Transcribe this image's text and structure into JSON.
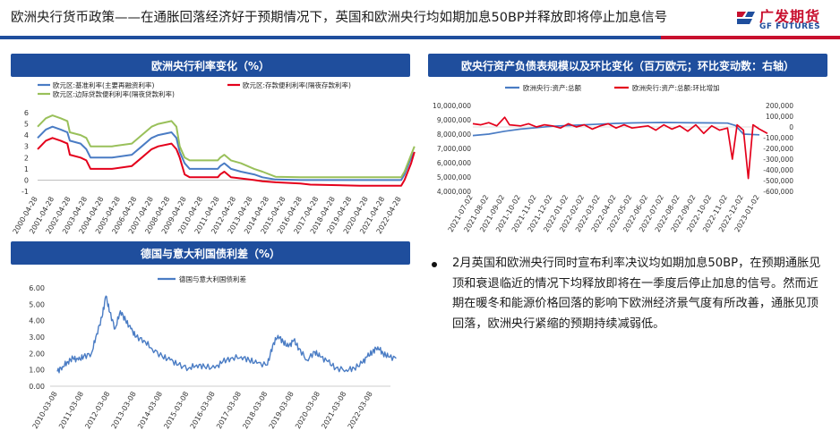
{
  "header": {
    "title": "欧洲央行货币政策——在通胀回落经济好于预期情况下，英国和欧洲央行均如期加息50BP并释放即将停止加息信号",
    "logo_cn": "广发期货",
    "logo_en": "GF FUTURES"
  },
  "colors": {
    "accent": "#1f4e9d",
    "brand_red": "#c8102e",
    "blue": "#4a7cc4",
    "red": "#e4001b",
    "green": "#99c05a"
  },
  "text": "2月英国和欧洲央行同时宣布利率决议均如期加息50BP，在预期通胀见顶和衰退临近的情况下均释放即将在一季度后停止加息的信号。然而近期在暖冬和能源价格回落的影响下欧洲经济景气度有所改善，通胀见顶回落，欧洲央行紧缩的预期持续减弱低。",
  "chart_data": [
    {
      "type": "line",
      "title": "欧洲央行利率变化（%）",
      "x_labels": [
        "2000-04-28",
        "2001-04-28",
        "2002-04-28",
        "2003-04-28",
        "2004-04-28",
        "2005-04-28",
        "2006-04-28",
        "2007-04-28",
        "2008-04-28",
        "2009-04-28",
        "2010-04-28",
        "2011-04-28",
        "2012-04-28",
        "2013-04-28",
        "2014-04-28",
        "2015-04-28",
        "2016-04-28",
        "2017-04-28",
        "2018-04-28",
        "2019-04-28",
        "2020-04-28",
        "2021-04-28",
        "2022-04-28"
      ],
      "ylim": [
        -1,
        6
      ],
      "yticks": [
        "6",
        "5",
        "4",
        "3",
        "2",
        "1",
        "0",
        "-1"
      ],
      "series": [
        {
          "name": "欧元区:基准利率(主要再融资利率)",
          "color": "#4a7cc4",
          "points": [
            [
              0,
              3.75
            ],
            [
              0.5,
              4.5
            ],
            [
              0.9,
              4.75
            ],
            [
              1.4,
              4.5
            ],
            [
              1.8,
              4.25
            ],
            [
              1.95,
              3.5
            ],
            [
              2.6,
              3.25
            ],
            [
              2.95,
              2.75
            ],
            [
              3.2,
              2.0
            ],
            [
              4.5,
              2.0
            ],
            [
              5.7,
              2.25
            ],
            [
              6.3,
              3.0
            ],
            [
              6.9,
              3.75
            ],
            [
              7.3,
              4.0
            ],
            [
              8.1,
              4.25
            ],
            [
              8.4,
              3.75
            ],
            [
              8.6,
              2.5
            ],
            [
              8.9,
              1.5
            ],
            [
              9.2,
              1.0
            ],
            [
              10.9,
              1.0
            ],
            [
              11.05,
              1.25
            ],
            [
              11.3,
              1.5
            ],
            [
              11.5,
              1.25
            ],
            [
              11.7,
              1.0
            ],
            [
              12.3,
              0.75
            ],
            [
              13.1,
              0.5
            ],
            [
              13.6,
              0.25
            ],
            [
              14.4,
              0.05
            ],
            [
              15.9,
              0.0
            ],
            [
              22.0,
              0.0
            ],
            [
              22.2,
              0.5
            ],
            [
              22.4,
              1.25
            ],
            [
              22.6,
              2.0
            ],
            [
              22.8,
              2.5
            ]
          ]
        },
        {
          "name": "欧元区:存款便利利率(隔夜存款利率)",
          "color": "#e4001b",
          "points": [
            [
              0,
              2.75
            ],
            [
              0.5,
              3.5
            ],
            [
              0.9,
              3.75
            ],
            [
              1.4,
              3.5
            ],
            [
              1.8,
              3.25
            ],
            [
              1.95,
              2.25
            ],
            [
              2.6,
              2.0
            ],
            [
              2.95,
              1.75
            ],
            [
              3.2,
              1.0
            ],
            [
              4.5,
              1.0
            ],
            [
              5.7,
              1.25
            ],
            [
              6.3,
              2.0
            ],
            [
              6.9,
              2.75
            ],
            [
              7.3,
              3.0
            ],
            [
              8.1,
              3.25
            ],
            [
              8.4,
              2.75
            ],
            [
              8.6,
              2.0
            ],
            [
              8.9,
              0.5
            ],
            [
              9.2,
              0.25
            ],
            [
              10.9,
              0.25
            ],
            [
              11.05,
              0.5
            ],
            [
              11.3,
              0.75
            ],
            [
              11.5,
              0.5
            ],
            [
              11.7,
              0.25
            ],
            [
              13.1,
              0.0
            ],
            [
              13.6,
              -0.1
            ],
            [
              14.4,
              -0.2
            ],
            [
              15.9,
              -0.3
            ],
            [
              16.5,
              -0.4
            ],
            [
              19.5,
              -0.5
            ],
            [
              21.5,
              -0.5
            ],
            [
              22.0,
              -0.5
            ],
            [
              22.2,
              0.0
            ],
            [
              22.4,
              0.75
            ],
            [
              22.6,
              1.5
            ],
            [
              22.8,
              2.5
            ]
          ]
        },
        {
          "name": "欧元区:边际贷款便利利率(隔夜贷款利率)",
          "color": "#99c05a",
          "points": [
            [
              0,
              4.75
            ],
            [
              0.5,
              5.5
            ],
            [
              0.9,
              5.75
            ],
            [
              1.4,
              5.5
            ],
            [
              1.8,
              5.25
            ],
            [
              1.95,
              4.25
            ],
            [
              2.6,
              4.0
            ],
            [
              2.95,
              3.75
            ],
            [
              3.2,
              3.0
            ],
            [
              4.5,
              3.0
            ],
            [
              5.7,
              3.25
            ],
            [
              6.3,
              4.0
            ],
            [
              6.9,
              4.75
            ],
            [
              7.3,
              5.0
            ],
            [
              8.1,
              5.25
            ],
            [
              8.4,
              4.75
            ],
            [
              8.6,
              3.0
            ],
            [
              8.9,
              2.0
            ],
            [
              9.2,
              1.75
            ],
            [
              10.9,
              1.75
            ],
            [
              11.05,
              2.0
            ],
            [
              11.3,
              2.25
            ],
            [
              11.5,
              2.0
            ],
            [
              11.7,
              1.75
            ],
            [
              12.3,
              1.5
            ],
            [
              13.1,
              1.0
            ],
            [
              13.6,
              0.75
            ],
            [
              14.4,
              0.3
            ],
            [
              15.9,
              0.25
            ],
            [
              22.0,
              0.25
            ],
            [
              22.2,
              0.75
            ],
            [
              22.4,
              1.5
            ],
            [
              22.6,
              2.25
            ],
            [
              22.8,
              3.0
            ]
          ]
        }
      ]
    },
    {
      "type": "line",
      "title": "欧央行资产负债表规模以及环比变化（百万欧元；环比变动数：右轴）",
      "x_labels": [
        "2021-07-02",
        "2021-08-02",
        "2021-09-02",
        "2021-10-02",
        "2021-11-02",
        "2021-12-02",
        "2022-01-02",
        "2022-02-02",
        "2022-03-02",
        "2022-04-02",
        "2022-05-02",
        "2022-06-02",
        "2022-07-02",
        "2022-08-02",
        "2022-09-02",
        "2022-10-02",
        "2022-11-02",
        "2022-12-02",
        "2023-01-02"
      ],
      "yticks_left": [
        "10,000,000",
        "9,000,000",
        "8,000,000",
        "7,000,000",
        "6,000,000",
        "5,000,000",
        "4,000,000"
      ],
      "yticks_right": [
        "200,000",
        "100,000",
        "0",
        "-100,000",
        "-200,000",
        "-300,000",
        "-400,000",
        "-500,000",
        "-600,000"
      ],
      "ylim_left": [
        4000000,
        10000000
      ],
      "ylim_right": [
        -600000,
        200000
      ],
      "series": [
        {
          "name": "欧洲央行:资产:总额",
          "axis": "left",
          "color": "#4a7cc4",
          "points": [
            [
              0,
              7900000
            ],
            [
              1,
              8000000
            ],
            [
              2,
              8200000
            ],
            [
              3,
              8350000
            ],
            [
              4,
              8450000
            ],
            [
              5,
              8550000
            ],
            [
              6,
              8600000
            ],
            [
              7,
              8650000
            ],
            [
              8,
              8700000
            ],
            [
              9,
              8750000
            ],
            [
              10,
              8780000
            ],
            [
              11,
              8800000
            ],
            [
              12,
              8810000
            ],
            [
              13,
              8800000
            ],
            [
              14,
              8790000
            ],
            [
              15,
              8780000
            ],
            [
              16,
              8770000
            ],
            [
              16.5,
              8600000
            ],
            [
              17,
              8000000
            ],
            [
              18,
              7950000
            ]
          ]
        },
        {
          "name": "欧洲央行:资产:总额:环比增加",
          "axis": "right",
          "color": "#e4001b",
          "points": [
            [
              0,
              30000
            ],
            [
              0.5,
              20000
            ],
            [
              1,
              40000
            ],
            [
              1.5,
              10000
            ],
            [
              2,
              90000
            ],
            [
              2.3,
              20000
            ],
            [
              3,
              10000
            ],
            [
              3.5,
              30000
            ],
            [
              4,
              0
            ],
            [
              4.5,
              20000
            ],
            [
              5,
              10000
            ],
            [
              5.5,
              -10000
            ],
            [
              6,
              30000
            ],
            [
              6.5,
              0
            ],
            [
              7,
              20000
            ],
            [
              7.5,
              -20000
            ],
            [
              8,
              10000
            ],
            [
              8.5,
              30000
            ],
            [
              9,
              -10000
            ],
            [
              9.5,
              20000
            ],
            [
              10,
              -10000
            ],
            [
              10.5,
              0
            ],
            [
              11,
              10000
            ],
            [
              11.5,
              -30000
            ],
            [
              12,
              20000
            ],
            [
              12.5,
              -20000
            ],
            [
              13,
              10000
            ],
            [
              13.5,
              -40000
            ],
            [
              14,
              20000
            ],
            [
              14.5,
              -60000
            ],
            [
              15,
              10000
            ],
            [
              15.5,
              -30000
            ],
            [
              16,
              -10000
            ],
            [
              16.3,
              -300000
            ],
            [
              16.6,
              20000
            ],
            [
              17,
              -30000
            ],
            [
              17.3,
              -480000
            ],
            [
              17.6,
              20000
            ],
            [
              18,
              -20000
            ],
            [
              18.5,
              -60000
            ]
          ]
        }
      ]
    },
    {
      "type": "line",
      "title": "德国与意大利国债利差（%）",
      "x_labels": [
        "2010-03-08",
        "2011-03-08",
        "2012-03-08",
        "2013-03-08",
        "2014-03-08",
        "2015-03-08",
        "2016-03-08",
        "2017-03-08",
        "2018-03-08",
        "2019-03-08",
        "2020-03-08",
        "2021-03-08",
        "2022-03-08"
      ],
      "ylim": [
        0,
        6
      ],
      "yticks": [
        "6.00",
        "5.00",
        "4.00",
        "3.00",
        "2.00",
        "1.00",
        "0.00"
      ],
      "series": [
        {
          "name": "德国与意大利国债利差",
          "color": "#4a7cc4",
          "points": [
            [
              0,
              0.9
            ],
            [
              0.2,
              1.2
            ],
            [
              0.4,
              1.5
            ],
            [
              0.6,
              1.7
            ],
            [
              0.8,
              1.6
            ],
            [
              1.0,
              1.8
            ],
            [
              1.3,
              2.0
            ],
            [
              1.5,
              3.2
            ],
            [
              1.7,
              4.2
            ],
            [
              1.85,
              5.5
            ],
            [
              2.0,
              4.5
            ],
            [
              2.2,
              3.5
            ],
            [
              2.4,
              4.6
            ],
            [
              2.6,
              4.0
            ],
            [
              2.8,
              3.5
            ],
            [
              3.0,
              3.0
            ],
            [
              3.3,
              2.8
            ],
            [
              3.6,
              2.3
            ],
            [
              4.0,
              1.8
            ],
            [
              4.3,
              1.6
            ],
            [
              4.6,
              1.3
            ],
            [
              5.0,
              1.1
            ],
            [
              5.3,
              1.3
            ],
            [
              5.6,
              1.2
            ],
            [
              6.0,
              1.1
            ],
            [
              6.3,
              1.5
            ],
            [
              6.6,
              1.7
            ],
            [
              7.0,
              1.8
            ],
            [
              7.3,
              1.6
            ],
            [
              7.6,
              1.4
            ],
            [
              8.0,
              1.3
            ],
            [
              8.2,
              2.5
            ],
            [
              8.4,
              3.1
            ],
            [
              8.6,
              2.7
            ],
            [
              8.8,
              2.4
            ],
            [
              9.0,
              2.8
            ],
            [
              9.2,
              2.3
            ],
            [
              9.5,
              1.6
            ],
            [
              9.8,
              2.1
            ],
            [
              10.0,
              1.8
            ],
            [
              10.3,
              1.5
            ],
            [
              10.6,
              1.1
            ],
            [
              11.0,
              1.0
            ],
            [
              11.3,
              1.1
            ],
            [
              11.6,
              1.4
            ],
            [
              11.8,
              1.8
            ],
            [
              12.0,
              2.1
            ],
            [
              12.2,
              2.4
            ],
            [
              12.4,
              2.0
            ],
            [
              12.6,
              1.8
            ],
            [
              12.9,
              1.7
            ]
          ]
        }
      ]
    }
  ]
}
